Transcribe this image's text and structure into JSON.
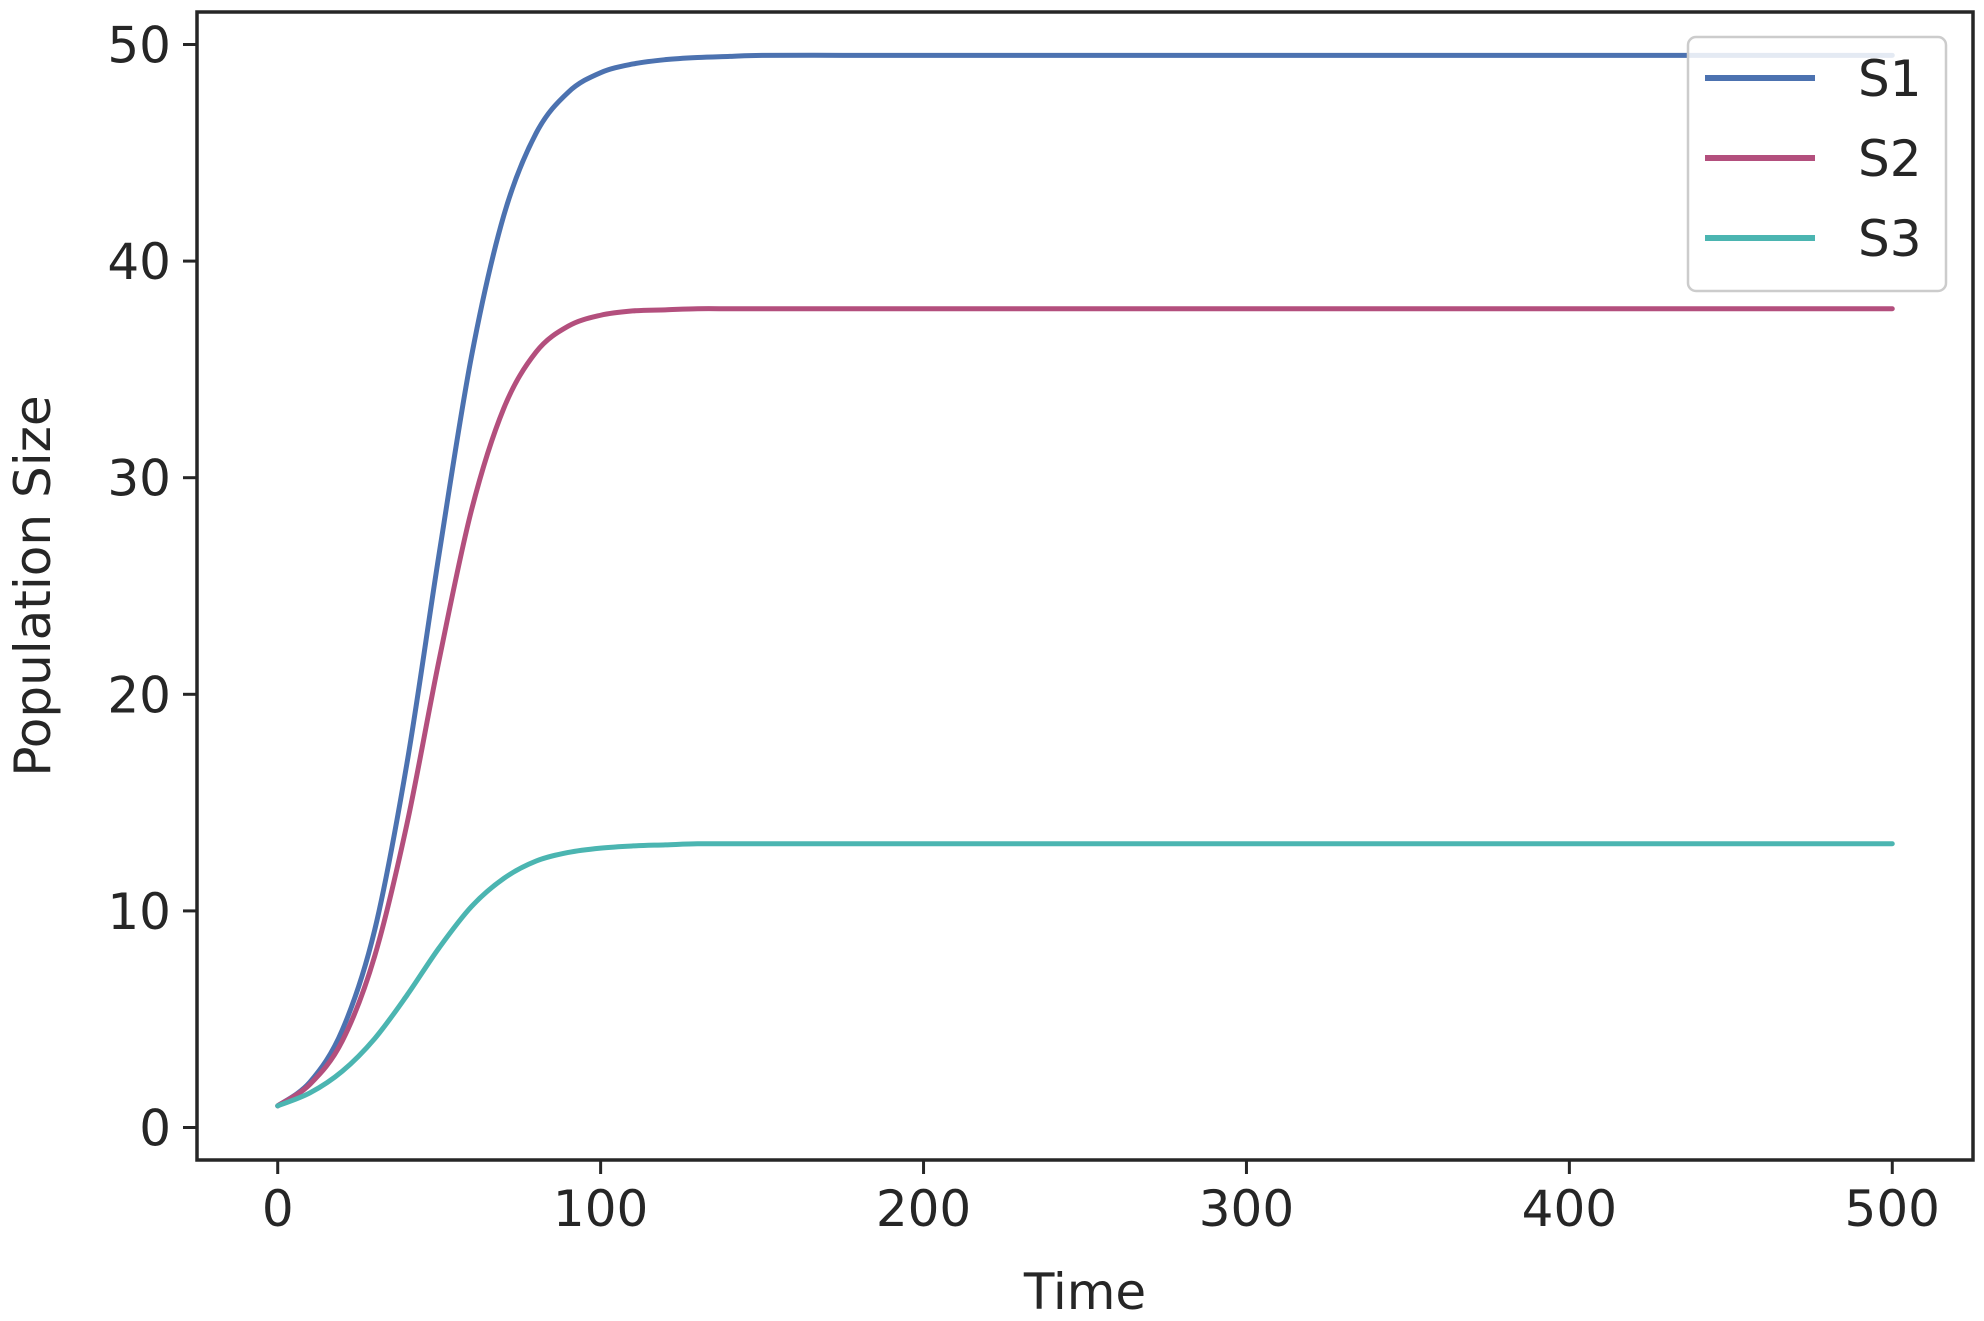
{
  "chart_data": {
    "type": "line",
    "title": "",
    "xlabel": "Time",
    "ylabel": "Population Size",
    "xlim": [
      -25,
      525
    ],
    "ylim": [
      -1.5,
      51.5
    ],
    "xticks": [
      0,
      100,
      200,
      300,
      400,
      500
    ],
    "yticks": [
      0,
      10,
      20,
      30,
      40,
      50
    ],
    "x_tick_labels": [
      "0",
      "100",
      "200",
      "300",
      "400",
      "500"
    ],
    "y_tick_labels": [
      "0",
      "10",
      "20",
      "30",
      "40",
      "50"
    ],
    "grid": false,
    "legend_position": "top-right",
    "x": [
      0,
      10,
      20,
      30,
      40,
      50,
      60,
      70,
      80,
      90,
      100,
      110,
      120,
      130,
      140,
      150,
      175,
      200,
      250,
      300,
      350,
      400,
      450,
      500
    ],
    "series": [
      {
        "name": "S1",
        "color": "#4c72b0",
        "values": [
          1.0,
          2.1,
          4.5,
          9.1,
          16.8,
          26.5,
          35.6,
          42.1,
          45.9,
          47.8,
          48.7,
          49.1,
          49.3,
          49.4,
          49.45,
          49.5,
          49.5,
          49.5,
          49.5,
          49.5,
          49.5,
          49.5,
          49.5,
          49.5
        ]
      },
      {
        "name": "S2",
        "color": "#b34f7d",
        "values": [
          1.0,
          2.0,
          4.0,
          7.9,
          14.0,
          21.6,
          28.5,
          33.2,
          35.8,
          37.0,
          37.5,
          37.7,
          37.75,
          37.8,
          37.8,
          37.8,
          37.8,
          37.8,
          37.8,
          37.8,
          37.8,
          37.8,
          37.8,
          37.8
        ]
      },
      {
        "name": "S3",
        "color": "#4bb5b1",
        "values": [
          1.0,
          1.6,
          2.6,
          4.1,
          6.1,
          8.3,
          10.2,
          11.5,
          12.3,
          12.7,
          12.9,
          13.0,
          13.05,
          13.1,
          13.1,
          13.1,
          13.1,
          13.1,
          13.1,
          13.1,
          13.1,
          13.1,
          13.1,
          13.1
        ]
      }
    ]
  }
}
